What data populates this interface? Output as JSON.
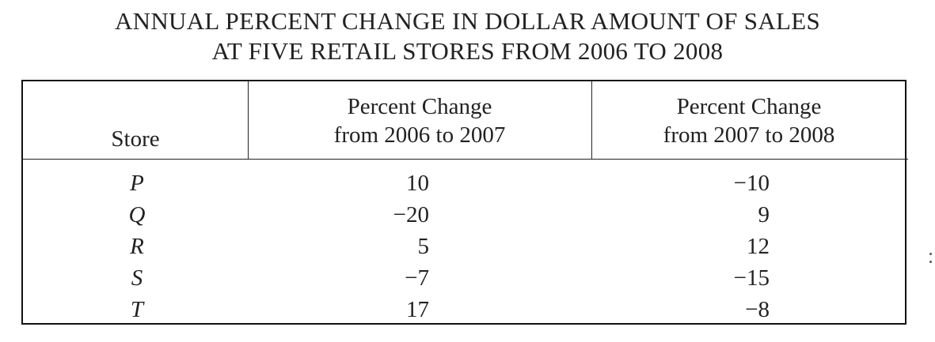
{
  "chart_data": {
    "type": "table",
    "title_lines": [
      "ANNUAL PERCENT CHANGE IN DOLLAR AMOUNT OF SALES",
      "AT FIVE RETAIL STORES FROM 2006 TO 2008"
    ],
    "columns": [
      {
        "lines": [
          "Store"
        ]
      },
      {
        "lines": [
          "Percent Change",
          "from 2006 to 2007"
        ]
      },
      {
        "lines": [
          "Percent Change",
          "from 2007 to 2008"
        ]
      }
    ],
    "rows": [
      {
        "store": "P",
        "change_2006_2007": "10",
        "change_2007_2008": "−10"
      },
      {
        "store": "Q",
        "change_2006_2007": "−20",
        "change_2007_2008": "9"
      },
      {
        "store": "R",
        "change_2006_2007": "5",
        "change_2007_2008": "12"
      },
      {
        "store": "S",
        "change_2006_2007": "−7",
        "change_2007_2008": "−15"
      },
      {
        "store": "T",
        "change_2006_2007": "17",
        "change_2007_2008": "−8"
      }
    ]
  }
}
